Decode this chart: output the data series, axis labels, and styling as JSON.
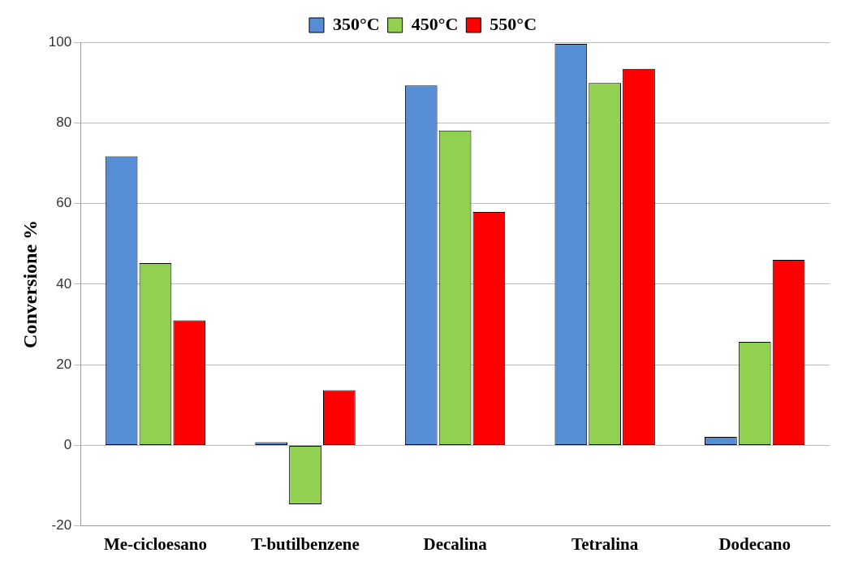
{
  "chart_data": {
    "type": "bar",
    "ylabel": "Conversione %",
    "categories": [
      "Me-cicloesano",
      "T-butilbenzene",
      "Decalina",
      "Tetralina",
      "Dodecano"
    ],
    "series": [
      {
        "name": "350°C",
        "color": "#558ed5",
        "values": [
          71.7,
          0.8,
          89.3,
          99.6,
          2.1
        ]
      },
      {
        "name": "450°C",
        "color": "#92d050",
        "values": [
          45.2,
          -14.6,
          78.1,
          89.9,
          25.7
        ]
      },
      {
        "name": "550°C",
        "color": "#ff0000",
        "values": [
          31.0,
          13.7,
          57.9,
          93.4,
          46.0
        ]
      }
    ],
    "ylim": [
      -20,
      100
    ],
    "yticks": [
      -20,
      0,
      20,
      40,
      60,
      80,
      100
    ],
    "grid": "y",
    "legend": "top"
  }
}
